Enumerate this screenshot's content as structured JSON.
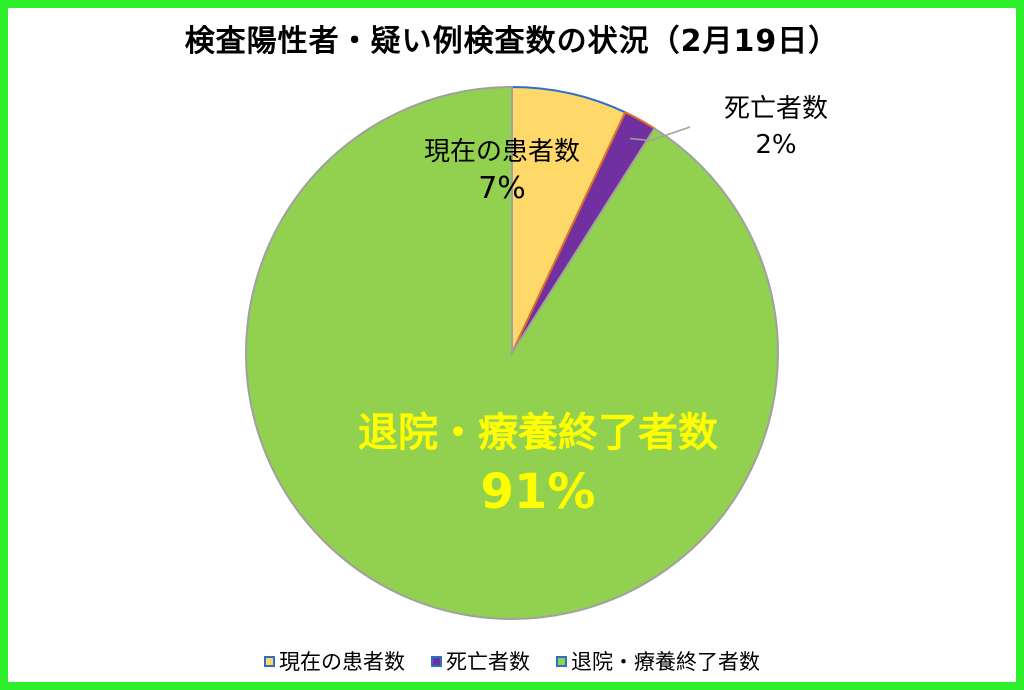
{
  "title": "検査陽性者・疑い例検査数の状況（2月19日）",
  "chart_data": {
    "type": "pie",
    "title": "検査陽性者・疑い例検査数の状況（2月19日）",
    "slices": [
      {
        "label": "現在の患者数",
        "value": 7,
        "display": "7%",
        "color": "#ffd86a",
        "border": "#2e6fc8"
      },
      {
        "label": "死亡者数",
        "value": 2,
        "display": "2%",
        "color": "#7030a0",
        "border": "#e07020"
      },
      {
        "label": "退院・療養終了者数",
        "value": 91,
        "display": "91%",
        "color": "#92d050",
        "border": "#a0a0a0"
      }
    ],
    "legend_position": "bottom"
  },
  "legend": [
    {
      "label": "現在の患者数",
      "color": "#ffd86a",
      "border": "#2e6fc8"
    },
    {
      "label": "死亡者数",
      "color": "#7030a0",
      "border": "#2e6fc8"
    },
    {
      "label": "退院・療養終了者数",
      "color": "#92d050",
      "border": "#2e6fc8"
    }
  ]
}
